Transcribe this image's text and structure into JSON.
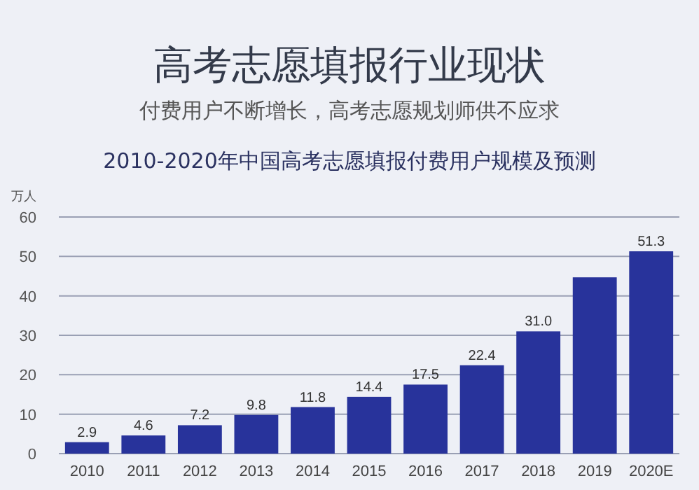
{
  "chart_data": {
    "type": "bar",
    "title": "高考志愿填报行业现状",
    "subtitle": "付费用户不断增长，高考志愿规划师供不应求",
    "annotations": [
      "2010-2020年中国高考志愿填报付费用户规模及预测"
    ],
    "ylabel": "万人",
    "categories": [
      "2010",
      "2011",
      "2012",
      "2013",
      "2014",
      "2015",
      "2016",
      "2017",
      "2018",
      "2019",
      "2020E"
    ],
    "values": [
      2.9,
      4.6,
      7.2,
      9.8,
      11.8,
      14.4,
      17.5,
      22.4,
      31.0,
      44.7,
      51.3
    ],
    "value_labels": [
      "2.9",
      "4.6",
      "7.2",
      "9.8",
      "11.8",
      "14.4",
      "17.5",
      "22.4",
      "31.0",
      null,
      "51.3"
    ],
    "color": "#28339b",
    "ylim": [
      0,
      60
    ],
    "yticks": [
      0,
      10,
      20,
      30,
      40,
      50,
      60
    ],
    "grid": "y"
  }
}
